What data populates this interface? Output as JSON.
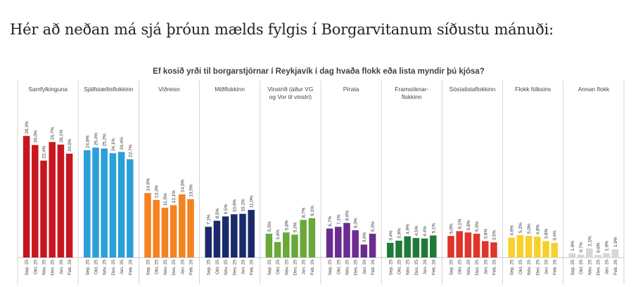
{
  "intro_text": "Hér að neðan má sjá þróun mælds fylgis í Borgarvitanum síðustu mánuði:",
  "chart_data": {
    "type": "bar",
    "title": "Ef kosið yrði til borgarstjórnar í Reykjavík í dag hvaða flokk eða lista myndir þú kjósa?",
    "months": [
      "Sep. 25",
      "Okt. 25",
      "Nóv. 25",
      "Des. 25",
      "Jan. 26",
      "Feb. 26"
    ],
    "ylim": [
      0,
      30
    ],
    "series": [
      {
        "name": "Samfylkinguna",
        "label_lines": [
          "Samfylkinguna"
        ],
        "color": "#c8161d",
        "values": [
          28.1,
          26.0,
          22.4,
          26.7,
          26.1,
          24.0
        ],
        "labels": [
          "28,1%",
          "26,0%",
          "22,4%",
          "26,7%",
          "26,1%",
          "24,0%"
        ]
      },
      {
        "name": "Sjálfstæðisflokkinn",
        "label_lines": [
          "Sjálfstæðisflokkinn"
        ],
        "color": "#2a9fd8",
        "values": [
          24.8,
          25.4,
          25.2,
          24.1,
          24.4,
          22.7
        ],
        "labels": [
          "24,8%",
          "25,4%",
          "25,2%",
          "24,1%",
          "24,4%",
          "22,7%"
        ]
      },
      {
        "name": "Viðreisn",
        "label_lines": [
          "Viðreisn"
        ],
        "color": "#f58220",
        "values": [
          14.9,
          13.3,
          11.5,
          12.1,
          14.6,
          13.5
        ],
        "labels": [
          "14,9%",
          "13,3%",
          "11,5%",
          "12,1%",
          "14,6%",
          "13,5%"
        ]
      },
      {
        "name": "Miðflokkinn",
        "label_lines": [
          "Miðflokkinn"
        ],
        "color": "#1b2a6b",
        "values": [
          7.1,
          8.5,
          9.5,
          10.0,
          10.1,
          11.0
        ],
        "labels": [
          "7,1%",
          "8,5%",
          "9,5%",
          "10,0%",
          "10,1%",
          "11,0%"
        ]
      },
      {
        "name": "Vinstrið (áður VG og Vor til vinstri)",
        "label_lines": [
          "Vinstrið (áður VG",
          "og Vor til vinstri)"
        ],
        "color": "#6aa83a",
        "values": [
          5.5,
          3.6,
          5.8,
          5.3,
          8.7,
          9.1
        ],
        "labels": [
          "5,5%",
          "3,6%",
          "5,8%",
          "5,3%",
          "8,7%",
          "9,1%"
        ]
      },
      {
        "name": "Pírata",
        "label_lines": [
          "Pírata"
        ],
        "color": "#6a2c91",
        "values": [
          6.7,
          7.1,
          8.0,
          6.3,
          3.0,
          5.5
        ],
        "labels": [
          "6,7%",
          "7,1%",
          "8,0%",
          "6,3%",
          "3,0%",
          "5,5%"
        ]
      },
      {
        "name": "Framsóknarflokkinn",
        "label_lines": [
          "Framsóknar-",
          "flokkinn"
        ],
        "color": "#1f7a3a",
        "values": [
          3.4,
          3.9,
          4.9,
          4.5,
          4.4,
          5.1
        ],
        "labels": [
          "3,4%",
          "3,9%",
          "4,9%",
          "4,5%",
          "4,4%",
          "5,1%"
        ]
      },
      {
        "name": "Sósíalistaflokkinn",
        "label_lines": [
          "Sósíalistaflokkinn"
        ],
        "color": "#e0342c",
        "values": [
          5.0,
          6.1,
          5.8,
          5.5,
          3.8,
          3.5
        ],
        "labels": [
          "5,0%",
          "6,1%",
          "5,8%",
          "5,5%",
          "3,8%",
          "3,5%"
        ]
      },
      {
        "name": "Flokk fólksins",
        "label_lines": [
          "Flokk fólksins"
        ],
        "color": "#f7d02c",
        "values": [
          4.6,
          5.2,
          5.0,
          4.8,
          3.8,
          3.4
        ],
        "labels": [
          "4,6%",
          "5,2%",
          "5,0%",
          "4,8%",
          "3,8%",
          "3,4%"
        ]
      },
      {
        "name": "Annan flokk",
        "label_lines": [
          "Annan flokk"
        ],
        "color": "#d6d6d6",
        "values": [
          1.0,
          0.7,
          2.1,
          0.6,
          1.0,
          1.9
        ],
        "labels": [
          "1,0%",
          "0,7%",
          "2,1%",
          "0,6%",
          "1,0%",
          "1,9%"
        ]
      }
    ]
  }
}
